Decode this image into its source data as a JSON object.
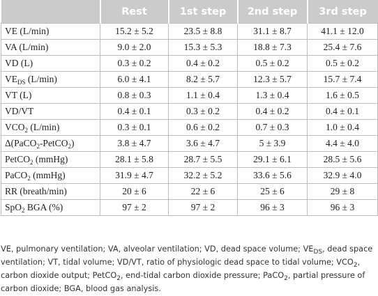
{
  "table": {
    "columns": [
      "Rest",
      "1st step",
      "2nd step",
      "3rd step"
    ],
    "rows": [
      {
        "label": [
          "VE (L/min)"
        ],
        "cells": [
          "15.2 ± 5.2",
          "23.5 ± 8.8",
          "31.1 ± 8.7",
          "41.1 ± 12.0"
        ]
      },
      {
        "label": [
          "VA (L/min)"
        ],
        "cells": [
          "9.0 ± 2.0",
          "15.3 ± 5.3",
          "18.8 ± 7.3",
          "25.4 ± 7.6"
        ]
      },
      {
        "label": [
          "VD (L)"
        ],
        "cells": [
          "0.3 ± 0.2",
          "0.4 ± 0.2",
          "0.5 ± 0.2",
          "0.5 ± 0.2"
        ]
      },
      {
        "label": [
          "VE",
          "DS",
          " (L/min)"
        ],
        "cells": [
          "6.0 ± 4.1",
          "8.2 ± 5.7",
          "12.3 ± 5.7",
          "15.7 ± 7.4"
        ]
      },
      {
        "label": [
          "VT (L)"
        ],
        "cells": [
          "0.8 ± 0.3",
          "1.1 ± 0.4",
          "1.3 ± 0.4",
          "1.6 ± 0.5"
        ]
      },
      {
        "label": [
          "VD/VT"
        ],
        "cells": [
          "0.4 ± 0.1",
          "0.3 ± 0.2",
          "0.4 ± 0.2",
          "0.4 ± 0.1"
        ]
      },
      {
        "label": [
          "VCO",
          "2",
          " (L/min)"
        ],
        "cells": [
          "0.3 ± 0.1",
          "0.6 ± 0.2",
          "0.7 ± 0.3",
          "1.0 ± 0.4"
        ]
      },
      {
        "label": [
          "Δ(PaCO",
          "2",
          "-PetCO",
          "2",
          ")"
        ],
        "cells": [
          "3.8 ± 4.7",
          "3.6 ± 4.7",
          "5 ± 3.9",
          "4.4 ± 4.0"
        ]
      },
      {
        "label": [
          "PetCO",
          "2",
          " (mmHg)"
        ],
        "cells": [
          "28.1 ± 5.8",
          "28.7 ± 5.5",
          "29.1 ± 6.1",
          "28.5 ± 5.6"
        ]
      },
      {
        "label": [
          "PaCO",
          "2",
          " (mmHg)"
        ],
        "cells": [
          "31.9 ± 4.7",
          "32.2 ± 5.2",
          "33.6 ± 5.6",
          "32.9 ± 4.0"
        ]
      },
      {
        "label": [
          "RR (breath/min)"
        ],
        "cells": [
          "20 ± 6",
          "22 ± 6",
          "25 ± 6",
          "29 ± 8"
        ]
      },
      {
        "label": [
          "SpO",
          "2",
          " BGA (%)"
        ],
        "cells": [
          "97 ± 2",
          "97 ± 2",
          "96 ± 3",
          "96 ± 3"
        ]
      }
    ]
  },
  "footnote": [
    "VE, pulmonary ventilation; VA, alveolar ventilation; VD, dead space volume; VE",
    "DS",
    ", dead space ventilation; VT, tidal volume; VD/VT, ratio of physiologic dead space to tidal volume; VCO",
    "2",
    ", carbon dioxide output; PetCO",
    "2",
    ", end-tidal carbon dioxide pressure; PaCO",
    "2",
    ", partial pressure of carbon dioxide; BGA, blood gas analysis."
  ]
}
